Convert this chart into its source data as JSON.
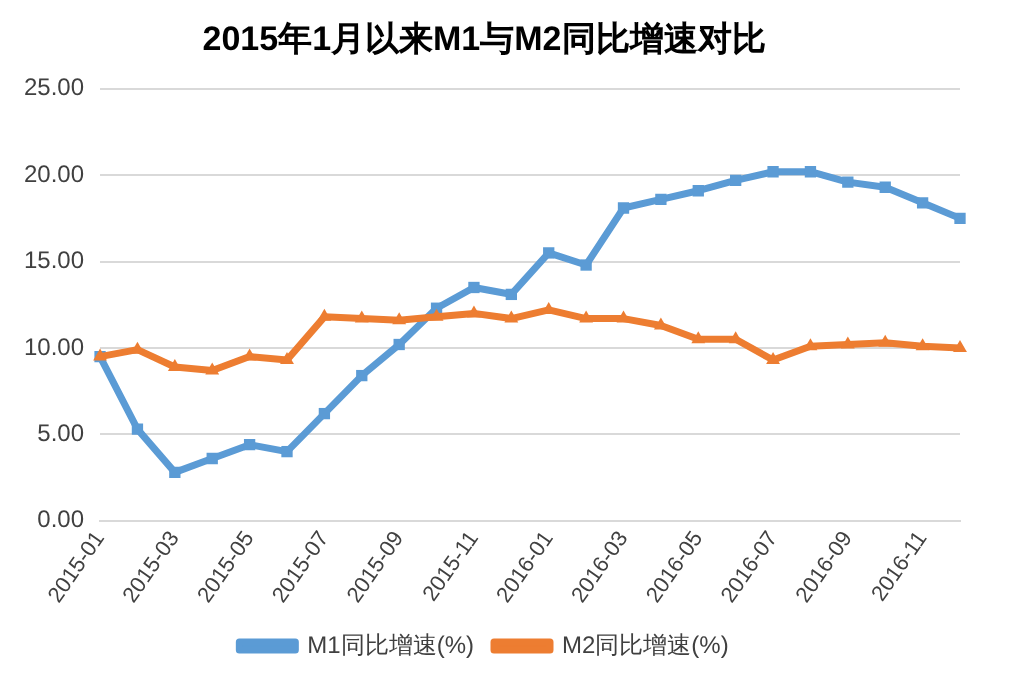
{
  "chart_data": {
    "type": "line",
    "title": "2015年1月以来M1与M2同比增速对比",
    "categories": [
      "2015-01",
      null,
      "2015-03",
      null,
      "2015-05",
      null,
      "2015-07",
      null,
      "2015-09",
      null,
      "2015-11",
      null,
      "2016-01",
      null,
      "2016-03",
      null,
      "2016-05",
      null,
      "2016-07",
      null,
      "2016-09",
      null,
      "2016-11",
      null
    ],
    "series": [
      {
        "name": "M1同比增速(%)",
        "color": "#5b9bd5",
        "marker": "square",
        "values": [
          9.5,
          5.3,
          2.8,
          3.6,
          4.4,
          4.0,
          6.2,
          8.4,
          10.2,
          12.3,
          13.5,
          13.1,
          15.5,
          14.8,
          18.1,
          18.6,
          19.1,
          19.7,
          20.2,
          20.2,
          19.6,
          19.3,
          18.4,
          17.5
        ]
      },
      {
        "name": "M2同比增速(%)",
        "color": "#ed7d31",
        "marker": "triangle",
        "values": [
          9.5,
          9.9,
          8.9,
          8.7,
          9.5,
          9.3,
          11.8,
          11.7,
          11.6,
          11.8,
          12.0,
          11.7,
          12.2,
          11.7,
          11.7,
          11.3,
          10.5,
          10.5,
          9.3,
          10.1,
          10.2,
          10.3,
          10.1,
          10.0
        ]
      }
    ],
    "ylim": [
      0,
      25
    ],
    "yticks": [
      {
        "value": 0,
        "label": "0.00"
      },
      {
        "value": 5,
        "label": "5.00"
      },
      {
        "value": 10,
        "label": "10.00"
      },
      {
        "value": 15,
        "label": "15.00"
      },
      {
        "value": 20,
        "label": "20.00"
      },
      {
        "value": 25,
        "label": "25.00"
      }
    ],
    "grid": "y",
    "legend": "bottom",
    "line_style": "solid"
  }
}
